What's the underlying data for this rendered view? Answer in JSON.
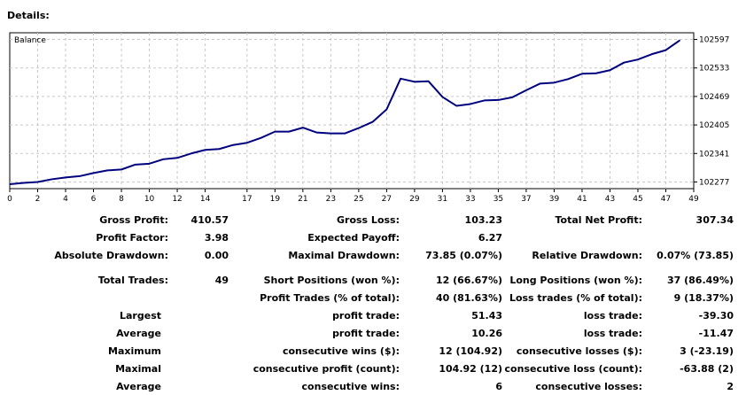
{
  "header": {
    "title": "Details:"
  },
  "chart_data": {
    "type": "line",
    "legend": "Balance",
    "x_ticks": [
      "0",
      "2",
      "4",
      "6",
      "8",
      "10",
      "12",
      "14",
      "17",
      "19",
      "21",
      "23",
      "25",
      "27",
      "29",
      "31",
      "33",
      "35",
      "37",
      "39",
      "41",
      "43",
      "45",
      "47",
      "49"
    ],
    "y_ticks": [
      "102597",
      "102533",
      "102469",
      "102405",
      "102341",
      "102277"
    ],
    "xlim": [
      0,
      49
    ],
    "ylim": [
      102262,
      102612
    ],
    "series": [
      {
        "values": [
          102272,
          102275,
          102277,
          102283,
          102287,
          102290,
          102297,
          102303,
          102305,
          102316,
          102318,
          102328,
          102331,
          102341,
          102349,
          102351,
          102360,
          102365,
          102376,
          102390,
          102390,
          102399,
          102388,
          102386,
          102386,
          102398,
          102412,
          102440,
          102509,
          102502,
          102503,
          102468,
          102448,
          102452,
          102460,
          102461,
          102467,
          102483,
          102498,
          102500,
          102508,
          102520,
          102521,
          102528,
          102545,
          102552,
          102564,
          102573,
          102595
        ]
      }
    ]
  },
  "stats": {
    "row1": {
      "gross_profit_label": "Gross Profit:",
      "gross_profit": "410.57",
      "gross_loss_label": "Gross Loss:",
      "gross_loss": "103.23",
      "total_net_profit_label": "Total Net Profit:",
      "total_net_profit": "307.34"
    },
    "row2": {
      "profit_factor_label": "Profit Factor:",
      "profit_factor": "3.98",
      "expected_payoff_label": "Expected Payoff:",
      "expected_payoff": "6.27"
    },
    "row3": {
      "absolute_drawdown_label": "Absolute Drawdown:",
      "absolute_drawdown": "0.00",
      "maximal_drawdown_label": "Maximal Drawdown:",
      "maximal_drawdown": "73.85 (0.07%)",
      "relative_drawdown_label": "Relative Drawdown:",
      "relative_drawdown": "0.07% (73.85)"
    },
    "row4": {
      "total_trades_label": "Total Trades:",
      "total_trades": "49",
      "short_positions_label": "Short Positions (won %):",
      "short_positions": "12 (66.67%)",
      "long_positions_label": "Long Positions (won %):",
      "long_positions": "37 (86.49%)"
    },
    "row5": {
      "profit_trades_label": "Profit Trades (% of total):",
      "profit_trades": "40 (81.63%)",
      "loss_trades_label": "Loss trades (% of total):",
      "loss_trades": "9 (18.37%)"
    },
    "row6": {
      "label": "Largest",
      "profit_label": "profit trade:",
      "profit": "51.43",
      "loss_label": "loss trade:",
      "loss": "-39.30"
    },
    "row7": {
      "label": "Average",
      "profit_label": "profit trade:",
      "profit": "10.26",
      "loss_label": "loss trade:",
      "loss": "-11.47"
    },
    "row8": {
      "label": "Maximum",
      "profit_label": "consecutive wins ($):",
      "profit": "12 (104.92)",
      "loss_label": "consecutive losses ($):",
      "loss": "3 (-23.19)"
    },
    "row9": {
      "label": "Maximal",
      "profit_label": "consecutive profit (count):",
      "profit": "104.92 (12)",
      "loss_label": "consecutive loss (count):",
      "loss": "-63.88 (2)"
    },
    "row10": {
      "label": "Average",
      "profit_label": "consecutive wins:",
      "profit": "6",
      "loss_label": "consecutive losses:",
      "loss": "2"
    }
  },
  "colors": {
    "line": "#00007f",
    "grid": "#c8c8c8",
    "border": "#000000"
  }
}
